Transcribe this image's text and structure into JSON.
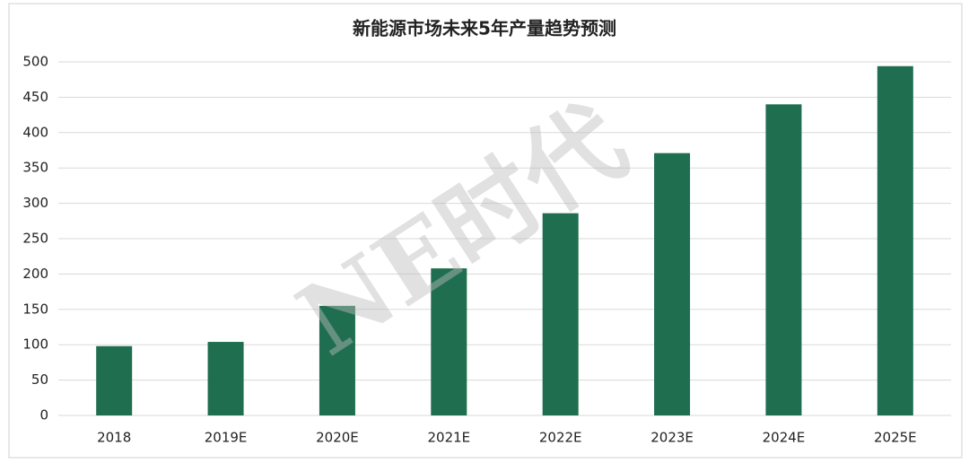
{
  "chart_data": {
    "type": "bar",
    "title": "新能源市场未来5年产量趋势预测",
    "watermark": "NE时代",
    "categories": [
      "2018",
      "2019E",
      "2020E",
      "2021E",
      "2022E",
      "2023E",
      "2024E",
      "2025E"
    ],
    "values": [
      98,
      104,
      155,
      208,
      286,
      371,
      440,
      494
    ],
    "color": "#1e6e4f",
    "ylim": [
      0,
      500
    ],
    "yticks": [
      0,
      50,
      100,
      150,
      200,
      250,
      300,
      350,
      400,
      450,
      500
    ],
    "grid": true
  }
}
